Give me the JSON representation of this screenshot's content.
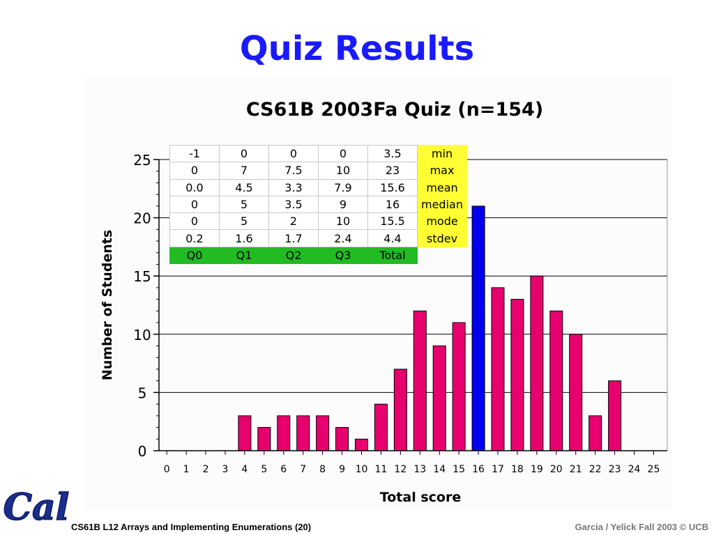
{
  "slide": {
    "title": "Quiz Results",
    "footer_left": "CS61B L12 Arrays and Implementing Enumerations  (20)",
    "footer_right": "Garcia / Yelick Fall 2003 © UCB",
    "logo_text": "Cal"
  },
  "colors": {
    "title": "#1a1aff",
    "bar": "#e8006e",
    "highlight_bar": "#0000ee",
    "table_labels": "#ffff33",
    "table_headers": "#22bb22"
  },
  "chart_data": {
    "type": "bar",
    "title": "CS61B 2003Fa Quiz (n=154)",
    "xlabel": "Total score",
    "ylabel": "Number of Students",
    "categories": [
      "0",
      "1",
      "2",
      "3",
      "4",
      "5",
      "6",
      "7",
      "8",
      "9",
      "10",
      "11",
      "12",
      "13",
      "14",
      "15",
      "16",
      "17",
      "18",
      "19",
      "20",
      "21",
      "22",
      "23",
      "24",
      "25"
    ],
    "values": [
      0,
      0,
      0,
      0,
      3,
      2,
      3,
      3,
      3,
      2,
      1,
      4,
      7,
      12,
      9,
      11,
      21,
      14,
      13,
      15,
      12,
      10,
      3,
      6,
      0,
      0
    ],
    "highlight_category": "16",
    "ylim": [
      0,
      25
    ],
    "yticks": [
      0,
      5,
      10,
      15,
      20,
      25
    ],
    "grid": "horizontal at major ticks",
    "stats_table": {
      "columns": [
        "Q0",
        "Q1",
        "Q2",
        "Q3",
        "Total"
      ],
      "rows": [
        {
          "label": "min",
          "values": [
            "-1",
            "0",
            "0",
            "0",
            "3.5"
          ]
        },
        {
          "label": "max",
          "values": [
            "0",
            "7",
            "7.5",
            "10",
            "23"
          ]
        },
        {
          "label": "mean",
          "values": [
            "0.0",
            "4.5",
            "3.3",
            "7.9",
            "15.6"
          ]
        },
        {
          "label": "median",
          "values": [
            "0",
            "5",
            "3.5",
            "9",
            "16"
          ]
        },
        {
          "label": "mode",
          "values": [
            "0",
            "5",
            "2",
            "10",
            "15.5"
          ]
        },
        {
          "label": "stdev",
          "values": [
            "0.2",
            "1.6",
            "1.7",
            "2.4",
            "4.4"
          ]
        }
      ]
    }
  }
}
